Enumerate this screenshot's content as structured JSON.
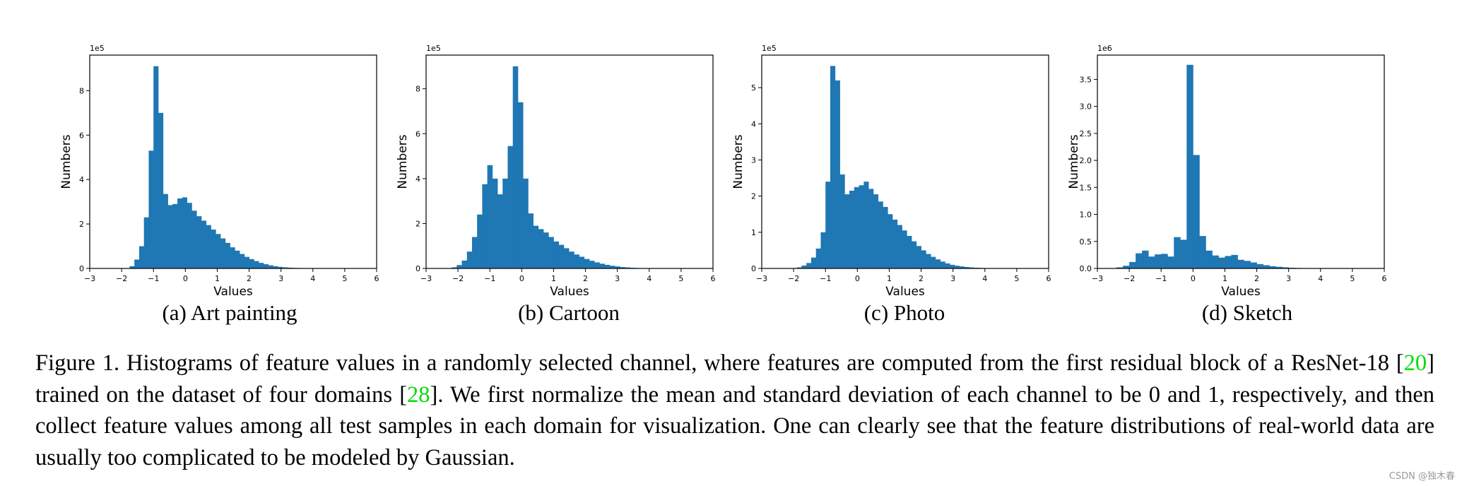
{
  "chart_data": [
    {
      "type": "bar",
      "xlabel": "Values",
      "ylabel": "Numbers",
      "scale_label": "1e5",
      "xlim": [
        -3,
        6
      ],
      "ylim": [
        0,
        9.6
      ],
      "xticks": [
        -3,
        -2,
        -1,
        0,
        1,
        2,
        3,
        4,
        5,
        6
      ],
      "yticks": [
        0,
        2,
        4,
        6,
        8
      ],
      "ytick_labels": [
        "0",
        "2",
        "4",
        "6",
        "8"
      ],
      "bin_start": -1.75,
      "bin_width": 0.15,
      "values": [
        0.1,
        0.4,
        1.0,
        2.3,
        5.3,
        9.1,
        7.0,
        3.35,
        2.85,
        2.9,
        3.15,
        3.2,
        2.95,
        2.6,
        2.35,
        2.15,
        1.95,
        1.75,
        1.55,
        1.35,
        1.15,
        0.95,
        0.8,
        0.65,
        0.52,
        0.42,
        0.33,
        0.25,
        0.19,
        0.14,
        0.1,
        0.07,
        0.05,
        0.035,
        0.025,
        0.018,
        0.012,
        0.008,
        0.005,
        0.003
      ]
    },
    {
      "type": "bar",
      "xlabel": "Values",
      "ylabel": "Numbers",
      "scale_label": "1e5",
      "xlim": [
        -3,
        6
      ],
      "ylim": [
        0,
        9.5
      ],
      "xticks": [
        -3,
        -2,
        -1,
        0,
        1,
        2,
        3,
        4,
        5,
        6
      ],
      "yticks": [
        0,
        2,
        4,
        6,
        8
      ],
      "ytick_labels": [
        "0",
        "2",
        "4",
        "6",
        "8"
      ],
      "bin_start": -2.2,
      "bin_width": 0.16,
      "values": [
        0.05,
        0.15,
        0.35,
        0.75,
        1.4,
        2.4,
        3.75,
        4.6,
        4.0,
        3.3,
        4.0,
        5.45,
        9.0,
        7.4,
        4.0,
        2.45,
        1.9,
        1.75,
        1.6,
        1.4,
        1.2,
        1.05,
        0.9,
        0.75,
        0.62,
        0.52,
        0.42,
        0.34,
        0.27,
        0.21,
        0.16,
        0.12,
        0.09,
        0.06,
        0.045,
        0.03,
        0.02,
        0.014,
        0.009,
        0.006,
        0.004
      ]
    },
    {
      "type": "bar",
      "xlabel": "Values",
      "ylabel": "Numbers",
      "scale_label": "1e5",
      "xlim": [
        -3,
        6
      ],
      "ylim": [
        0,
        5.9
      ],
      "xticks": [
        -3,
        -2,
        -1,
        0,
        1,
        2,
        3,
        4,
        5,
        6
      ],
      "yticks": [
        0,
        1,
        2,
        3,
        4,
        5
      ],
      "ytick_labels": [
        "0",
        "1",
        "2",
        "3",
        "4",
        "5"
      ],
      "bin_start": -1.9,
      "bin_width": 0.15,
      "values": [
        0.03,
        0.08,
        0.15,
        0.3,
        0.55,
        1.0,
        2.4,
        5.6,
        5.2,
        2.6,
        2.05,
        2.15,
        2.25,
        2.3,
        2.4,
        2.2,
        2.05,
        1.85,
        1.7,
        1.5,
        1.35,
        1.2,
        1.05,
        0.9,
        0.75,
        0.62,
        0.5,
        0.4,
        0.32,
        0.25,
        0.19,
        0.14,
        0.1,
        0.075,
        0.055,
        0.04,
        0.028,
        0.02,
        0.014,
        0.009,
        0.006,
        0.004,
        0.003
      ]
    },
    {
      "type": "bar",
      "xlabel": "Values",
      "ylabel": "Numbers",
      "scale_label": "1e6",
      "xlim": [
        -3,
        6
      ],
      "ylim": [
        0,
        3.95
      ],
      "xticks": [
        -3,
        -2,
        -1,
        0,
        1,
        2,
        3,
        4,
        5,
        6
      ],
      "yticks": [
        0,
        0.5,
        1,
        1.5,
        2,
        2.5,
        3,
        3.5
      ],
      "ytick_labels": [
        "0.0",
        "0.5",
        "1.0",
        "1.5",
        "2.0",
        "2.5",
        "3.0",
        "3.5"
      ],
      "bin_start": -2.4,
      "bin_width": 0.2,
      "values": [
        0.02,
        0.05,
        0.12,
        0.28,
        0.33,
        0.22,
        0.26,
        0.27,
        0.22,
        0.58,
        0.53,
        3.77,
        2.1,
        0.6,
        0.33,
        0.24,
        0.2,
        0.23,
        0.25,
        0.16,
        0.14,
        0.11,
        0.08,
        0.06,
        0.04,
        0.03,
        0.02,
        0.013,
        0.009,
        0.006,
        0.004,
        0.003
      ]
    }
  ],
  "panels": [
    {
      "caption": "(a) Art painting"
    },
    {
      "caption": "(b) Cartoon"
    },
    {
      "caption": "(c) Photo"
    },
    {
      "caption": "(d) Sketch"
    }
  ],
  "caption": {
    "t1": "Figure 1.  Histograms of feature values in a randomly selected channel, where features are computed from the first residual block of a ResNet-18 [",
    "ref1": "20",
    "t2": "] trained on the dataset of four domains [",
    "ref2": "28",
    "t3": "]. We first normalize the mean and standard deviation of each channel to be 0 and 1, respectively, and then collect feature values among all test samples in each domain for visualization. One can clearly see that the feature distributions of real-world data are usually too complicated to be modeled by Gaussian."
  },
  "watermark": "CSDN @独木春",
  "colors": {
    "bar": "#1f77b4",
    "citation": "#00dd00"
  }
}
